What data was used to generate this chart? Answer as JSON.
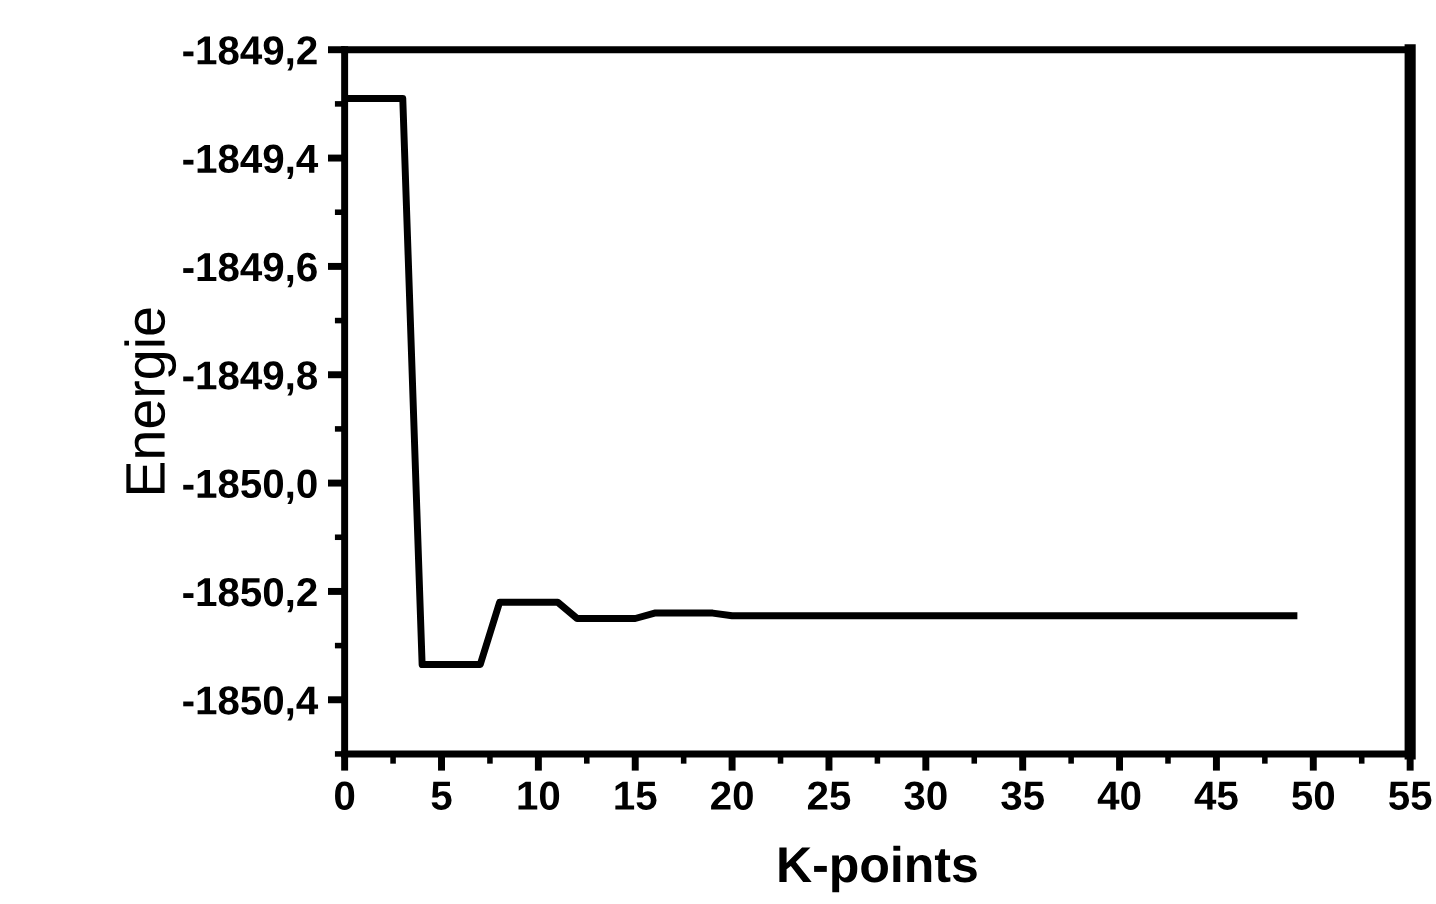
{
  "chart_data": {
    "type": "line",
    "xlabel": "K-points",
    "ylabel": "Energie",
    "x": [
      0,
      1,
      2,
      3,
      4,
      5,
      6,
      7,
      8,
      9,
      10,
      11,
      12,
      13,
      14,
      15,
      16,
      17,
      18,
      19,
      20,
      25,
      30,
      35,
      40,
      45,
      49
    ],
    "series": [
      {
        "color": "#000000",
        "values": [
          -1849.29,
          -1849.29,
          -1849.29,
          -1849.29,
          -1850.335,
          -1850.335,
          -1850.335,
          -1850.335,
          -1850.22,
          -1850.22,
          -1850.22,
          -1850.22,
          -1850.25,
          -1850.25,
          -1850.25,
          -1850.25,
          -1850.24,
          -1850.24,
          -1850.24,
          -1850.24,
          -1850.245,
          -1850.245,
          -1850.245,
          -1850.245,
          -1850.245,
          -1850.245,
          -1850.245
        ]
      }
    ],
    "xlim": [
      0,
      55
    ],
    "xticks": [
      0,
      5,
      10,
      15,
      20,
      25,
      30,
      35,
      40,
      45,
      50,
      55
    ],
    "ylim": [
      -1850.5,
      -1849.2
    ],
    "yticks": [
      {
        "value": -1850.4,
        "label": "-1850,4"
      },
      {
        "value": -1850.2,
        "label": "-1850,2"
      },
      {
        "value": -1850.0,
        "label": "-1850,0"
      },
      {
        "value": -1849.8,
        "label": "-1849,8"
      },
      {
        "value": -1849.6,
        "label": "-1849,6"
      },
      {
        "value": -1849.4,
        "label": "-1849,4"
      },
      {
        "value": -1849.2,
        "label": "-1849,2"
      }
    ],
    "grid": false,
    "legend": false,
    "marker": "none",
    "line_style": "solid"
  }
}
